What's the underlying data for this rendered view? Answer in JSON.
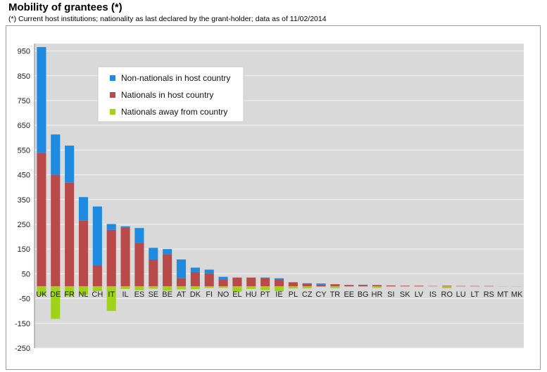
{
  "title": "Mobility of grantees (*)",
  "subtitle": "(*) Current host institutions; nationality as last declared by the grant-holder; data as of 11/02/2014",
  "colors": {
    "non_nationals": "#1e8be0",
    "nationals": "#b94a4a",
    "away": "#9fd31a",
    "plot_bg": "#d9d9d9",
    "grid": "#f4f4f4"
  },
  "chart_data": {
    "type": "bar",
    "stacked": true,
    "title": "Mobility of grantees (*)",
    "xlabel": "",
    "ylabel": "",
    "ylim": [
      -250,
      980
    ],
    "yticks": [
      950,
      850,
      750,
      650,
      550,
      450,
      350,
      250,
      150,
      50,
      -50,
      -150,
      -250
    ],
    "grid": true,
    "legend_position": "top-left",
    "categories": [
      "UK",
      "DE",
      "FR",
      "NL",
      "CH",
      "IT",
      "IL",
      "ES",
      "SE",
      "BE",
      "AT",
      "DK",
      "FI",
      "NO",
      "EL",
      "HU",
      "PT",
      "IE",
      "PL",
      "CZ",
      "CY",
      "TR",
      "EE",
      "BG",
      "HR",
      "SI",
      "SK",
      "LV",
      "IS",
      "RO",
      "LU",
      "LT",
      "RS",
      "MT",
      "MK"
    ],
    "series": [
      {
        "name": "Non-nationals in host country",
        "values": [
          428,
          163,
          150,
          95,
          237,
          23,
          5,
          60,
          47,
          22,
          75,
          18,
          15,
          10,
          0,
          0,
          2,
          5,
          0,
          2,
          5,
          0,
          0,
          2,
          2,
          0,
          0,
          0,
          0,
          0,
          0,
          0,
          0,
          0,
          0
        ]
      },
      {
        "name": "Nationals in host country",
        "values": [
          538,
          450,
          418,
          265,
          85,
          228,
          237,
          175,
          108,
          128,
          33,
          57,
          52,
          28,
          35,
          35,
          33,
          27,
          16,
          10,
          6,
          8,
          5,
          4,
          3,
          3,
          2,
          2,
          1,
          2,
          1,
          1,
          1,
          0,
          0
        ]
      },
      {
        "name": "Nationals away from country",
        "values": [
          -38,
          -132,
          -42,
          -35,
          -20,
          -100,
          -11,
          -16,
          -10,
          -18,
          -13,
          -12,
          -7,
          -7,
          -22,
          -11,
          -16,
          -20,
          -9,
          -9,
          -3,
          -8,
          -2,
          -2,
          -7,
          -2,
          -2,
          -2,
          -1,
          -8,
          -2,
          -2,
          -2,
          -1,
          -1
        ]
      }
    ]
  }
}
